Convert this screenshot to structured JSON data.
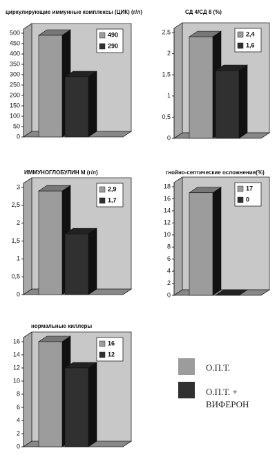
{
  "chart_data": [
    {
      "type": "bar",
      "title": "циркулирующие иммунные комплексы (ЦИК) (г/л)",
      "values": [
        490,
        290
      ],
      "value_labels": [
        "490",
        "290"
      ],
      "ylim": [
        0,
        500
      ],
      "yticks": [
        0,
        50,
        100,
        150,
        200,
        250,
        300,
        350,
        400,
        450,
        500
      ]
    },
    {
      "type": "bar",
      "title": "СД 4/СД 8 (%)",
      "values": [
        2.4,
        1.6
      ],
      "value_labels": [
        "2,4",
        "1,6"
      ],
      "ylim": [
        0,
        2.5
      ],
      "yticks": [
        0,
        {
          "value": 0.5,
          "label": "0,5"
        },
        1,
        {
          "value": 1.5,
          "label": "1,5"
        },
        2,
        {
          "value": 2.5,
          "label": "2,5"
        }
      ]
    },
    {
      "type": "bar",
      "title": "ИММУНОГЛОБУЛИН М (г/л)",
      "values": [
        2.9,
        1.7
      ],
      "value_labels": [
        "2,9",
        "1,7"
      ],
      "ylim": [
        0,
        3
      ],
      "yticks": [
        0,
        {
          "value": 0.5,
          "label": "0,5"
        },
        1,
        {
          "value": 1.5,
          "label": "1,5"
        },
        2,
        {
          "value": 2.5,
          "label": "2,5"
        },
        3
      ]
    },
    {
      "type": "bar",
      "title": "гнойно-септические осложнения(%)",
      "values": [
        17,
        0
      ],
      "ylim": [
        0,
        18
      ],
      "yticks": [
        0,
        2,
        4,
        6,
        8,
        10,
        12,
        14,
        16,
        18
      ]
    },
    {
      "type": "bar",
      "title": "нормальные киллеры",
      "values": [
        16,
        12
      ],
      "ylim": [
        0,
        16
      ],
      "yticks": [
        0,
        2,
        4,
        6,
        8,
        10,
        12,
        14,
        16
      ]
    }
  ],
  "legend": {
    "series": [
      {
        "name": "О.П.Т.",
        "color": "#9c9c9c"
      },
      {
        "name": "О.П.Т. + ВИФЕРОН",
        "color": "#303030"
      }
    ]
  }
}
